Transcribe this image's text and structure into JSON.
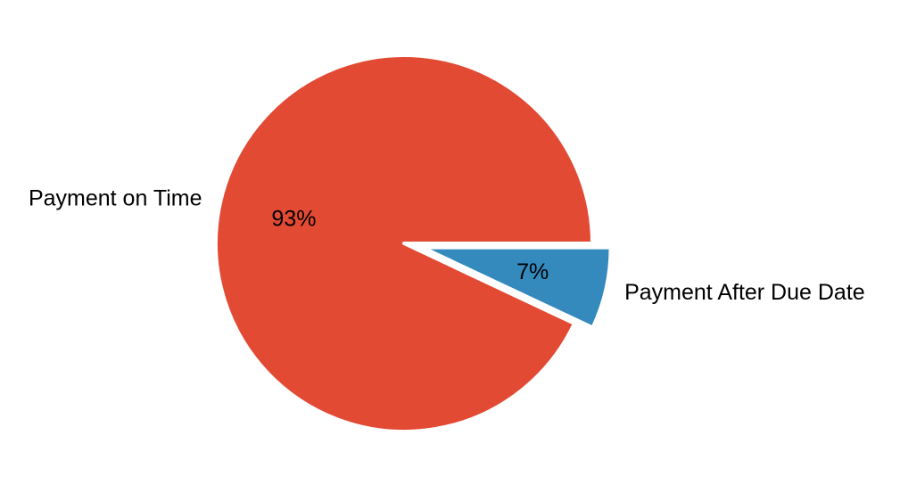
{
  "chart_data": {
    "type": "pie",
    "slices": [
      {
        "label": "Payment on Time",
        "value": 93,
        "pct_label": "93%",
        "color": "#E24A33",
        "explode": false
      },
      {
        "label": "Payment After Due Date",
        "value": 7,
        "pct_label": "7%",
        "color": "#348ABD",
        "explode": true
      }
    ],
    "start_angle": 0,
    "direction": "counterclockwise",
    "legend": "none",
    "grid": false
  }
}
